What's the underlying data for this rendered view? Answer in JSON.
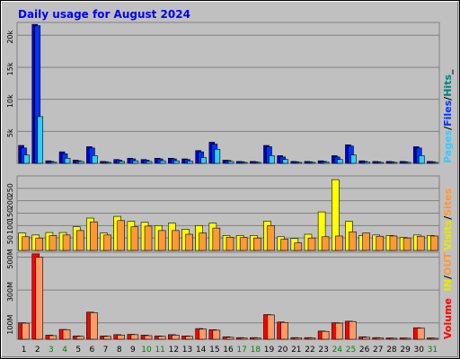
{
  "chart_data": [
    {
      "type": "bar",
      "title": "Daily usage for August 2024",
      "categories": [
        "1",
        "2",
        "3",
        "4",
        "5",
        "6",
        "7",
        "8",
        "9",
        "10",
        "11",
        "12",
        "13",
        "14",
        "15",
        "16",
        "17",
        "18",
        "19",
        "20",
        "21",
        "22",
        "23",
        "24",
        "25",
        "26",
        "27",
        "28",
        "29",
        "30",
        "31"
      ],
      "weekend_days": [
        "3",
        "4",
        "10",
        "11",
        "17",
        "18",
        "24",
        "25",
        "31"
      ],
      "ylabel_parts": [
        "Pages",
        "Files",
        "Hits"
      ],
      "yticks": [
        "5k",
        "10k",
        "15k",
        "20k"
      ],
      "ylim": [
        0,
        22000
      ],
      "series": [
        {
          "name": "Hits",
          "color": "#0000cc",
          "values": [
            2800,
            21700,
            400,
            1800,
            500,
            2600,
            300,
            600,
            800,
            600,
            800,
            800,
            700,
            2000,
            3300,
            500,
            300,
            300,
            2800,
            1200,
            300,
            300,
            400,
            1200,
            2900,
            400,
            300,
            300,
            300,
            2600,
            300
          ]
        },
        {
          "name": "Files",
          "color": "#0033ff",
          "values": [
            2400,
            21500,
            300,
            1500,
            400,
            2400,
            250,
            500,
            700,
            500,
            700,
            700,
            600,
            1800,
            3000,
            450,
            250,
            250,
            2600,
            1000,
            250,
            250,
            300,
            1000,
            2700,
            300,
            250,
            250,
            250,
            2400,
            250
          ]
        },
        {
          "name": "Pages",
          "color": "#33ccff",
          "values": [
            1300,
            7300,
            200,
            800,
            300,
            1200,
            150,
            300,
            400,
            300,
            400,
            400,
            350,
            900,
            2200,
            300,
            150,
            150,
            1200,
            600,
            150,
            150,
            200,
            600,
            1300,
            200,
            150,
            150,
            150,
            1200,
            150
          ]
        }
      ]
    },
    {
      "type": "bar",
      "categories": [
        "1",
        "2",
        "3",
        "4",
        "5",
        "6",
        "7",
        "8",
        "9",
        "10",
        "11",
        "12",
        "13",
        "14",
        "15",
        "16",
        "17",
        "18",
        "19",
        "20",
        "21",
        "22",
        "23",
        "24",
        "25",
        "26",
        "27",
        "28",
        "29",
        "30",
        "31"
      ],
      "ylabel_parts": [
        "Visits",
        "Sites"
      ],
      "yticks": [
        "50",
        "100",
        "150",
        "200",
        "250"
      ],
      "ylim": [
        0,
        300
      ],
      "series": [
        {
          "name": "Visits",
          "color": "#ffff00",
          "values": [
            70,
            62,
            72,
            72,
            95,
            130,
            70,
            137,
            117,
            113,
            100,
            110,
            85,
            100,
            110,
            60,
            60,
            60,
            118,
            55,
            48,
            65,
            155,
            285,
            117,
            60,
            62,
            60,
            52,
            62,
            60
          ]
        },
        {
          "name": "Sites",
          "color": "#ff9933",
          "values": [
            55,
            50,
            60,
            62,
            80,
            115,
            62,
            120,
            95,
            98,
            80,
            80,
            65,
            70,
            90,
            53,
            52,
            50,
            100,
            45,
            30,
            50,
            55,
            58,
            75,
            70,
            57,
            58,
            50,
            57,
            58
          ]
        }
      ]
    },
    {
      "type": "bar",
      "categories": [
        "1",
        "2",
        "3",
        "4",
        "5",
        "6",
        "7",
        "8",
        "9",
        "10",
        "11",
        "12",
        "13",
        "14",
        "15",
        "16",
        "17",
        "18",
        "19",
        "20",
        "21",
        "22",
        "23",
        "24",
        "25",
        "26",
        "27",
        "28",
        "29",
        "30",
        "31"
      ],
      "ylabel_parts": [
        "Volume",
        "IN",
        "OUT"
      ],
      "yticks": [
        "100M",
        "300M",
        "500M"
      ],
      "ylim": [
        0,
        530
      ],
      "series": [
        {
          "name": "Volume",
          "color": "#ff0000",
          "values": [
            100,
            520,
            25,
            60,
            20,
            165,
            20,
            28,
            30,
            25,
            20,
            28,
            20,
            65,
            58,
            15,
            10,
            10,
            150,
            105,
            10,
            10,
            50,
            100,
            110,
            15,
            10,
            8,
            8,
            70,
            8
          ]
        },
        {
          "name": "OUT",
          "color": "#ff9966",
          "values": [
            98,
            500,
            22,
            58,
            18,
            162,
            18,
            25,
            28,
            22,
            18,
            25,
            18,
            62,
            55,
            12,
            8,
            8,
            148,
            102,
            8,
            8,
            48,
            98,
            108,
            12,
            8,
            6,
            6,
            68,
            6
          ]
        }
      ]
    }
  ],
  "colors": {
    "background": "#c0c0c0",
    "title": "#0000ff",
    "weekday_label": "#000000",
    "weekend_label": "#008000",
    "ylabel_pages": "#33ccff",
    "ylabel_files": "#0033ff",
    "ylabel_hits": "#008080",
    "ylabel_visits": "#e8e800",
    "ylabel_sites": "#ff9933",
    "ylabel_volume": "#ff0000",
    "ylabel_in": "#e8e800",
    "ylabel_out": "#ff9933"
  }
}
